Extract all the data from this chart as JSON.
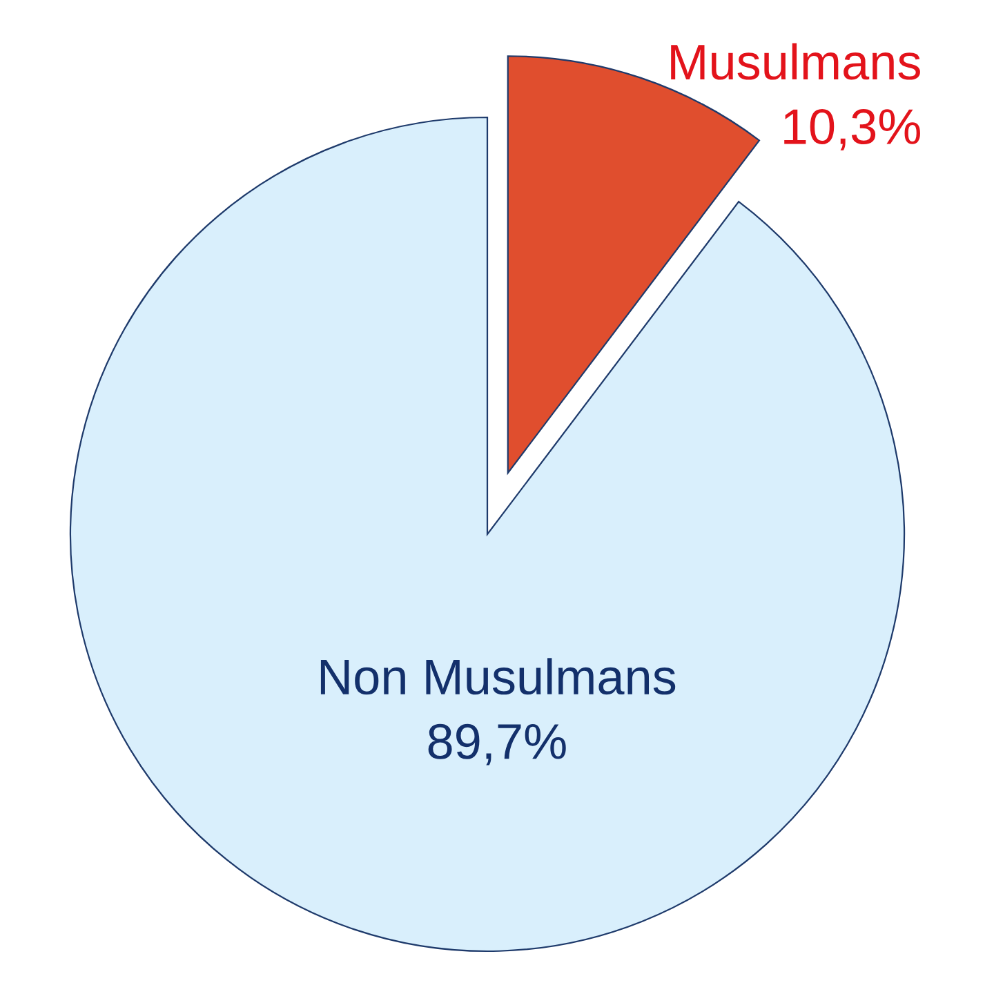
{
  "chart_data": {
    "type": "pie",
    "categories": [
      "Musulmans",
      "Non Musulmans"
    ],
    "values": [
      10.3,
      89.7
    ],
    "colors": [
      "#e04e2e",
      "#d9effc"
    ],
    "value_labels": [
      "10,3%",
      "89,7%"
    ]
  }
}
